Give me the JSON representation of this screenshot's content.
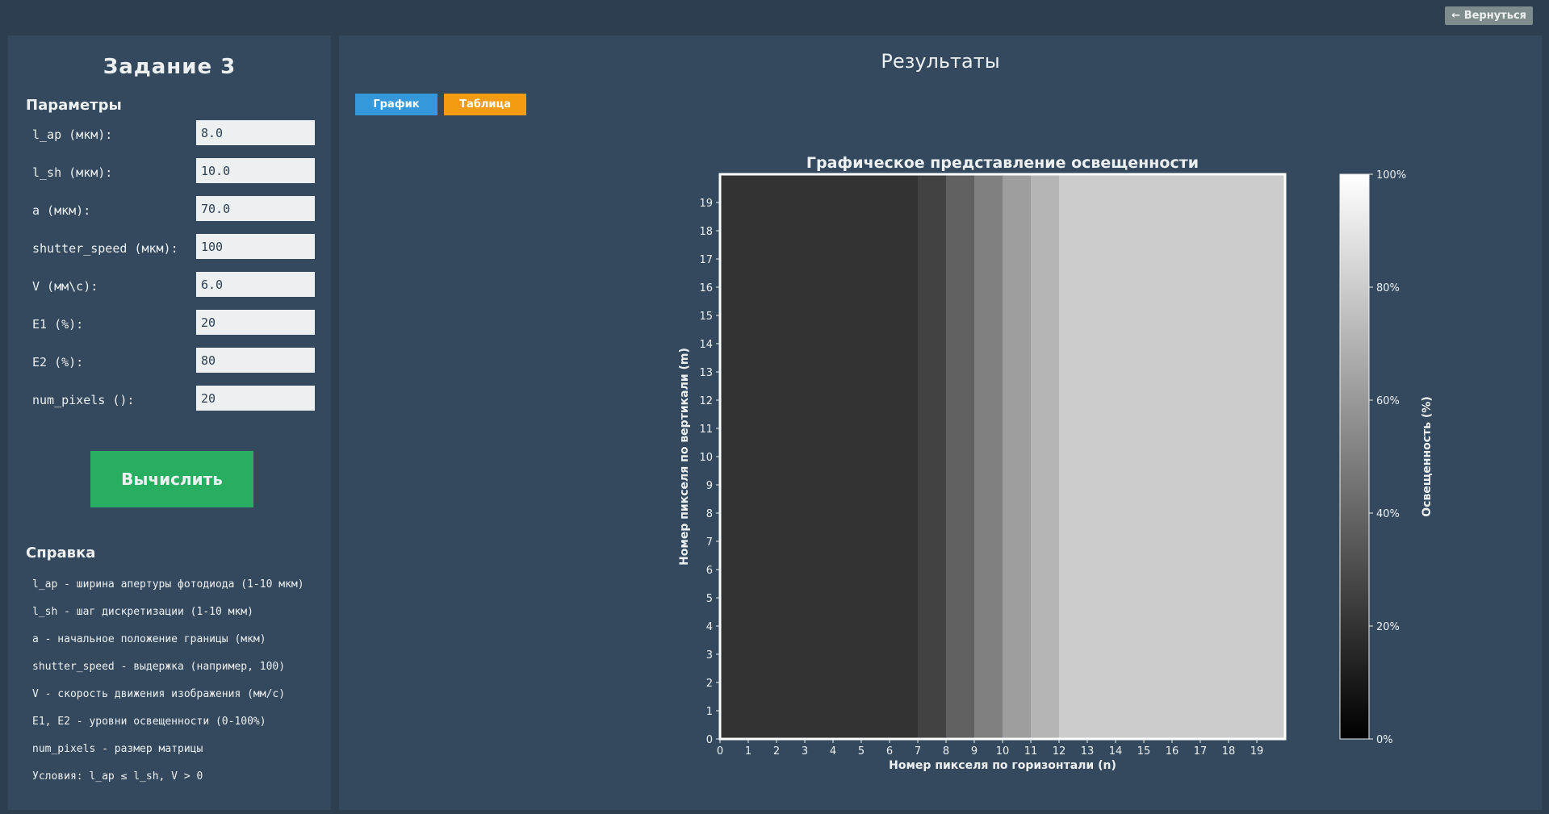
{
  "header": {
    "back_label": "← Вернуться"
  },
  "left": {
    "title": "Задание 3",
    "params_title": "Параметры",
    "params": [
      {
        "label": "l_ap (мкм):",
        "value": "8.0"
      },
      {
        "label": "l_sh (мкм):",
        "value": "10.0"
      },
      {
        "label": "a (мкм):",
        "value": "70.0"
      },
      {
        "label": "shutter_speed (мкм):",
        "value": "100"
      },
      {
        "label": "V (мм\\с):",
        "value": "6.0"
      },
      {
        "label": "E1 (%):",
        "value": "20"
      },
      {
        "label": "E2 (%):",
        "value": "80"
      },
      {
        "label": "num_pixels ():",
        "value": "20"
      }
    ],
    "calc_label": "Вычислить",
    "help_title": "Справка",
    "help": [
      "l_ap - ширина апертуры фотодиода (1-10 мкм)",
      "l_sh - шаг дискретизации (1-10 мкм)",
      "a - начальное положение границы (мкм)",
      "shutter_speed - выдержка (например, 100)",
      "V - скорость движения изображения (мм/с)",
      "E1, E2 - уровни освещенности (0-100%)",
      "num_pixels - размер матрицы",
      "Условия: l_ap ≤ l_sh, V > 0"
    ]
  },
  "right": {
    "title": "Результаты",
    "tabs": [
      {
        "label": "График"
      },
      {
        "label": "Таблица"
      }
    ]
  },
  "chart_data": {
    "type": "heatmap",
    "title": "Графическое представление освещенности",
    "xlabel": "Номер пикселя по горизонтали (n)",
    "ylabel": "Номер пикселя по вертикали (m)",
    "colorbar_label": "Освещенность (%)",
    "colormap": "gray",
    "vmin": 0,
    "vmax": 100,
    "colorbar_ticks": [
      "0%",
      "20%",
      "40%",
      "60%",
      "80%",
      "100%"
    ],
    "x_ticks": [
      0,
      1,
      2,
      3,
      4,
      5,
      6,
      7,
      8,
      9,
      10,
      11,
      12,
      13,
      14,
      15,
      16,
      17,
      18,
      19
    ],
    "y_ticks": [
      0,
      1,
      2,
      3,
      4,
      5,
      6,
      7,
      8,
      9,
      10,
      11,
      12,
      13,
      14,
      15,
      16,
      17,
      18,
      19
    ],
    "column_values": [
      20,
      20,
      20,
      20,
      20,
      20,
      20,
      26,
      38,
      50,
      62,
      71,
      80,
      80,
      80,
      80,
      80,
      80,
      80,
      80
    ],
    "rows": 20
  }
}
